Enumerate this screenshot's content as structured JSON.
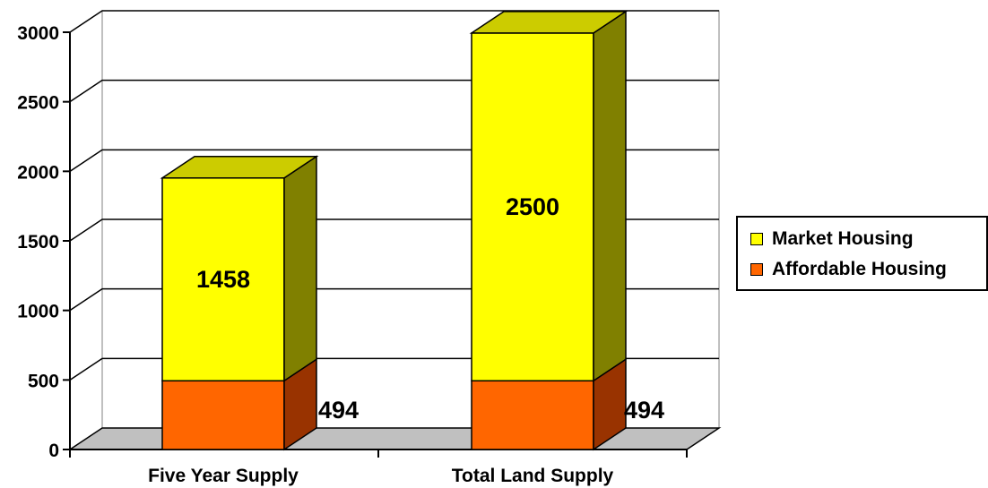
{
  "chart_data": {
    "type": "bar",
    "stacked": true,
    "three_d": true,
    "categories": [
      "Five Year Supply",
      "Total Land Supply"
    ],
    "series": [
      {
        "name": "Affordable Housing",
        "values": [
          494,
          494
        ],
        "color": "#FF6600",
        "side_color": "#993300",
        "top_color": "#CC3300"
      },
      {
        "name": "Market Housing",
        "values": [
          1458,
          2500
        ],
        "color": "#FFFF00",
        "side_color": "#808000",
        "top_color": "#CCCC00"
      }
    ],
    "data_labels": [
      "494",
      "1458",
      "494",
      "2500"
    ],
    "y_ticks": [
      "0",
      "500",
      "1000",
      "1500",
      "2000",
      "2500",
      "3000"
    ],
    "ylim": [
      0,
      3000
    ],
    "grid": true,
    "legend_position": "right",
    "title": "",
    "xlabel": "",
    "ylabel": ""
  },
  "legend": {
    "items": [
      {
        "label": "Market Housing",
        "color": "#FFFF00"
      },
      {
        "label": "Affordable Housing",
        "color": "#FF6600"
      }
    ]
  }
}
